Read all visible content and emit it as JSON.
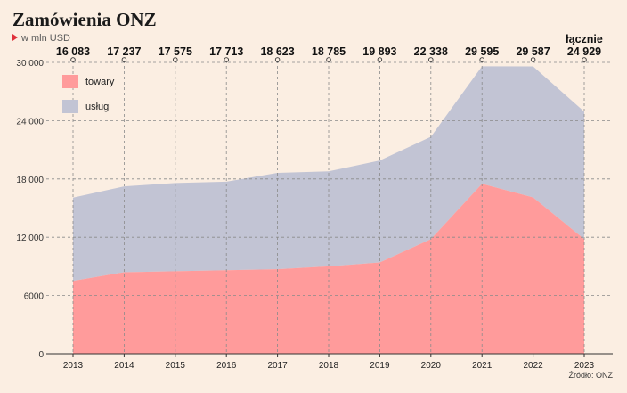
{
  "header": {
    "title": "Zamówienia ONZ",
    "subtitle": "w mln USD"
  },
  "footer": {
    "source": "Źródło: ONZ"
  },
  "colors": {
    "background": "#fbeee2",
    "towary": "#ff9b9b",
    "uslugi": "#c2c4d4",
    "marker": "#e0303a"
  },
  "chart_data": {
    "type": "area",
    "stacked": true,
    "x": [
      "2013",
      "2014",
      "2015",
      "2016",
      "2017",
      "2018",
      "2019",
      "2020",
      "2021",
      "2022",
      "2023"
    ],
    "series": [
      {
        "name": "towary",
        "values": [
          7500,
          8400,
          8500,
          8600,
          8700,
          9000,
          9400,
          11800,
          17500,
          16100,
          11800
        ]
      },
      {
        "name": "usługi",
        "values": [
          8583,
          8837,
          9075,
          9113,
          9923,
          9785,
          10493,
          10538,
          12095,
          13487,
          13129
        ]
      }
    ],
    "totals": [
      "16 083",
      "17 237",
      "17 575",
      "17 713",
      "18 623",
      "18 785",
      "19 893",
      "22 338",
      "29 595",
      "29 587",
      "24 929"
    ],
    "totals_label": "łącznie",
    "yticks": [
      0,
      6000,
      12000,
      18000,
      24000,
      30000
    ],
    "ytick_labels": [
      "0",
      "6000",
      "12 000",
      "18 000",
      "24 000",
      "30 000"
    ],
    "ylim": [
      0,
      30000
    ],
    "legend": [
      "towary",
      "usługi"
    ],
    "legend_position": "top-left",
    "grid": true
  }
}
